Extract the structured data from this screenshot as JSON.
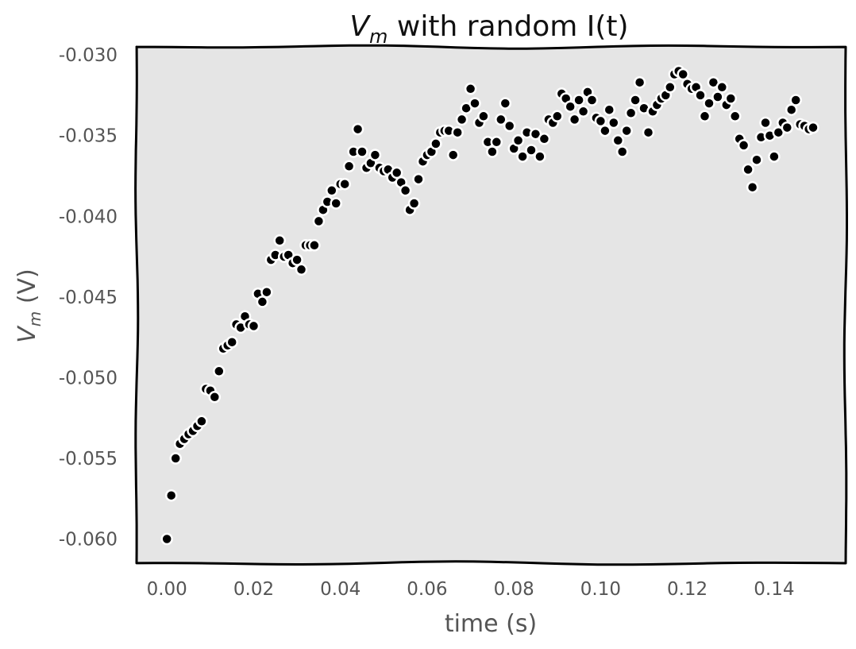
{
  "chart_data": {
    "type": "scatter",
    "title": {
      "var": "V",
      "sub": "m",
      "rest": " with random I(t)"
    },
    "xlabel": "time (s)",
    "ylabel": {
      "var": "V",
      "sub": "m",
      "rest": " (V)"
    },
    "xlim": [
      -0.007,
      0.1565
    ],
    "ylim": [
      -0.0615,
      -0.0295
    ],
    "xticks": [
      0.0,
      0.02,
      0.04,
      0.06,
      0.08,
      0.1,
      0.12,
      0.14
    ],
    "xtick_labels": [
      "0.00",
      "0.02",
      "0.04",
      "0.06",
      "0.08",
      "0.10",
      "0.12",
      "0.14"
    ],
    "yticks": [
      -0.03,
      -0.035,
      -0.04,
      -0.045,
      -0.05,
      -0.055,
      -0.06
    ],
    "ytick_labels": [
      "-0.030",
      "-0.035",
      "-0.040",
      "-0.045",
      "-0.050",
      "-0.055",
      "-0.060"
    ],
    "grid": false,
    "background": "#e5e5e5",
    "marker_color": "#000000",
    "marker_edge": "#ffffff",
    "series": [
      {
        "x": [
          0.0,
          0.001,
          0.002,
          0.003,
          0.004,
          0.005,
          0.006,
          0.007,
          0.008,
          0.009,
          0.01,
          0.011,
          0.012,
          0.013,
          0.014,
          0.015,
          0.016,
          0.017,
          0.018,
          0.019,
          0.02,
          0.021,
          0.022,
          0.023,
          0.024,
          0.025,
          0.026,
          0.027,
          0.028,
          0.029,
          0.03,
          0.031,
          0.032,
          0.033,
          0.034,
          0.035,
          0.036,
          0.037,
          0.038,
          0.039,
          0.04,
          0.041,
          0.042,
          0.043,
          0.044,
          0.045,
          0.046,
          0.047,
          0.048,
          0.049,
          0.05,
          0.051,
          0.052,
          0.053,
          0.054,
          0.055,
          0.056,
          0.057,
          0.058,
          0.059,
          0.06,
          0.061,
          0.062,
          0.063,
          0.064,
          0.065,
          0.066,
          0.067,
          0.068,
          0.069,
          0.07,
          0.071,
          0.072,
          0.073,
          0.074,
          0.075,
          0.076,
          0.077,
          0.078,
          0.079,
          0.08,
          0.081,
          0.082,
          0.083,
          0.084,
          0.085,
          0.086,
          0.087,
          0.088,
          0.089,
          0.09,
          0.091,
          0.092,
          0.093,
          0.094,
          0.095,
          0.096,
          0.097,
          0.098,
          0.099,
          0.1,
          0.101,
          0.102,
          0.103,
          0.104,
          0.105,
          0.106,
          0.107,
          0.108,
          0.109,
          0.11,
          0.111,
          0.112,
          0.113,
          0.114,
          0.115,
          0.116,
          0.117,
          0.118,
          0.119,
          0.12,
          0.121,
          0.122,
          0.123,
          0.124,
          0.125,
          0.126,
          0.127,
          0.128,
          0.129,
          0.13,
          0.131,
          0.132,
          0.133,
          0.134,
          0.135,
          0.136,
          0.137,
          0.138,
          0.139,
          0.14,
          0.141,
          0.142,
          0.143,
          0.144,
          0.145,
          0.146,
          0.147,
          0.148,
          0.149
        ],
        "y": [
          -0.06,
          -0.0573,
          -0.055,
          -0.0541,
          -0.0538,
          -0.0535,
          -0.0533,
          -0.053,
          -0.0527,
          -0.0507,
          -0.0508,
          -0.0512,
          -0.0496,
          -0.0482,
          -0.048,
          -0.0478,
          -0.0467,
          -0.0469,
          -0.0462,
          -0.0467,
          -0.0468,
          -0.0448,
          -0.0453,
          -0.0447,
          -0.0427,
          -0.0424,
          -0.0415,
          -0.0425,
          -0.0424,
          -0.0429,
          -0.0427,
          -0.0433,
          -0.0418,
          -0.0418,
          -0.0418,
          -0.0403,
          -0.0396,
          -0.0391,
          -0.0384,
          -0.0392,
          -0.038,
          -0.038,
          -0.0369,
          -0.036,
          -0.0346,
          -0.036,
          -0.037,
          -0.0367,
          -0.0362,
          -0.037,
          -0.0372,
          -0.0371,
          -0.0376,
          -0.0373,
          -0.0379,
          -0.0384,
          -0.0396,
          -0.0392,
          -0.0377,
          -0.0366,
          -0.0362,
          -0.036,
          -0.0355,
          -0.0348,
          -0.0347,
          -0.0347,
          -0.0362,
          -0.0348,
          -0.034,
          -0.0333,
          -0.0321,
          -0.033,
          -0.0342,
          -0.0338,
          -0.0354,
          -0.036,
          -0.0354,
          -0.034,
          -0.033,
          -0.0344,
          -0.0358,
          -0.0353,
          -0.0363,
          -0.0348,
          -0.0359,
          -0.0349,
          -0.0363,
          -0.0352,
          -0.034,
          -0.0342,
          -0.0338,
          -0.0324,
          -0.0327,
          -0.0332,
          -0.034,
          -0.0328,
          -0.0335,
          -0.0323,
          -0.0328,
          -0.0339,
          -0.0341,
          -0.0347,
          -0.0334,
          -0.0342,
          -0.0353,
          -0.036,
          -0.0347,
          -0.0336,
          -0.0328,
          -0.0317,
          -0.0333,
          -0.0348,
          -0.0335,
          -0.0331,
          -0.0327,
          -0.0325,
          -0.032,
          -0.0312,
          -0.031,
          -0.0312,
          -0.0318,
          -0.0321,
          -0.032,
          -0.0325,
          -0.0338,
          -0.033,
          -0.0317,
          -0.0326,
          -0.032,
          -0.0331,
          -0.0327,
          -0.0338,
          -0.0352,
          -0.0356,
          -0.0371,
          -0.0382,
          -0.0365,
          -0.0351,
          -0.0342,
          -0.035,
          -0.0363,
          -0.0348,
          -0.0342,
          -0.0345,
          -0.0334,
          -0.0328,
          -0.0343,
          -0.0344,
          -0.0346,
          -0.0345
        ]
      }
    ]
  }
}
